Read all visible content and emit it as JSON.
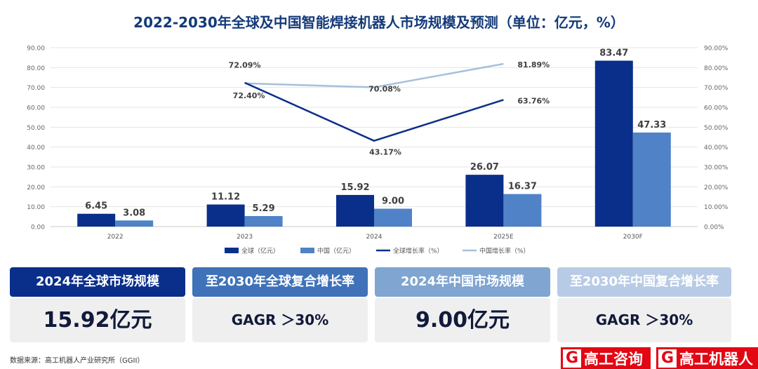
{
  "title": "2022-2030年全球及中国智能焊接机器人市场规模及预测（单位：亿元，%）",
  "chart_data": {
    "type": "bar",
    "categories": [
      "2022",
      "2023",
      "2024",
      "2025E",
      "2030F"
    ],
    "series": [
      {
        "name": "全球（亿元）",
        "kind": "bar",
        "axis": "left",
        "color": "#0a2f8a",
        "values": [
          6.45,
          11.12,
          15.92,
          26.07,
          83.47
        ],
        "labels": [
          "6.45",
          "11.12",
          "15.92",
          "26.07",
          "83.47"
        ]
      },
      {
        "name": "中国（亿元）",
        "kind": "bar",
        "axis": "left",
        "color": "#4f82c7",
        "values": [
          3.08,
          5.29,
          9.0,
          16.37,
          47.33
        ],
        "labels": [
          "3.08",
          "5.29",
          "9.00",
          "16.37",
          "47.33"
        ]
      },
      {
        "name": "全球增长率（%）",
        "kind": "line",
        "axis": "right",
        "color": "#0a2f8a",
        "values": [
          null,
          72.4,
          43.17,
          63.76,
          null
        ],
        "labels": [
          "",
          "72.40%",
          "43.17%",
          "63.76%",
          ""
        ]
      },
      {
        "name": "中国增长率（%）",
        "kind": "line",
        "axis": "right",
        "color": "#a6c0dc",
        "values": [
          null,
          72.09,
          70.08,
          81.89,
          null
        ],
        "labels": [
          "",
          "72.09%",
          "70.08%",
          "81.89%",
          ""
        ]
      }
    ],
    "ylim": [
      0,
      90
    ],
    "y2lim": [
      0,
      90
    ],
    "yticks": [
      "0.00",
      "10.00",
      "20.00",
      "30.00",
      "40.00",
      "50.00",
      "60.00",
      "70.00",
      "80.00",
      "90.00"
    ],
    "y2ticks": [
      "0.00%",
      "10.00%",
      "20.00%",
      "30.00%",
      "40.00%",
      "50.00%",
      "60.00%",
      "70.00%",
      "80.00%",
      "90.00%"
    ],
    "grid": true,
    "legend_position": "bottom"
  },
  "cards": [
    {
      "head": "2024年全球市场规模",
      "value": "15.92亿元",
      "head_color": "#0a2f8a"
    },
    {
      "head": "至2030年全球复合增长率",
      "value": "GAGR ＞30%",
      "head_color": "#3f72b8"
    },
    {
      "head": "2024年中国市场规模",
      "value": "9.00亿元",
      "head_color": "#7fa5d0"
    },
    {
      "head": "至2030年中国复合增长率",
      "value": "GAGR ＞30%",
      "head_color": "#b8cbe6"
    }
  ],
  "source": "数据来源：高工机器人产业研究所（GGII）",
  "logos": [
    {
      "mark": "G",
      "text": "高工咨询"
    },
    {
      "mark": "G",
      "text": "高工机器人"
    }
  ]
}
